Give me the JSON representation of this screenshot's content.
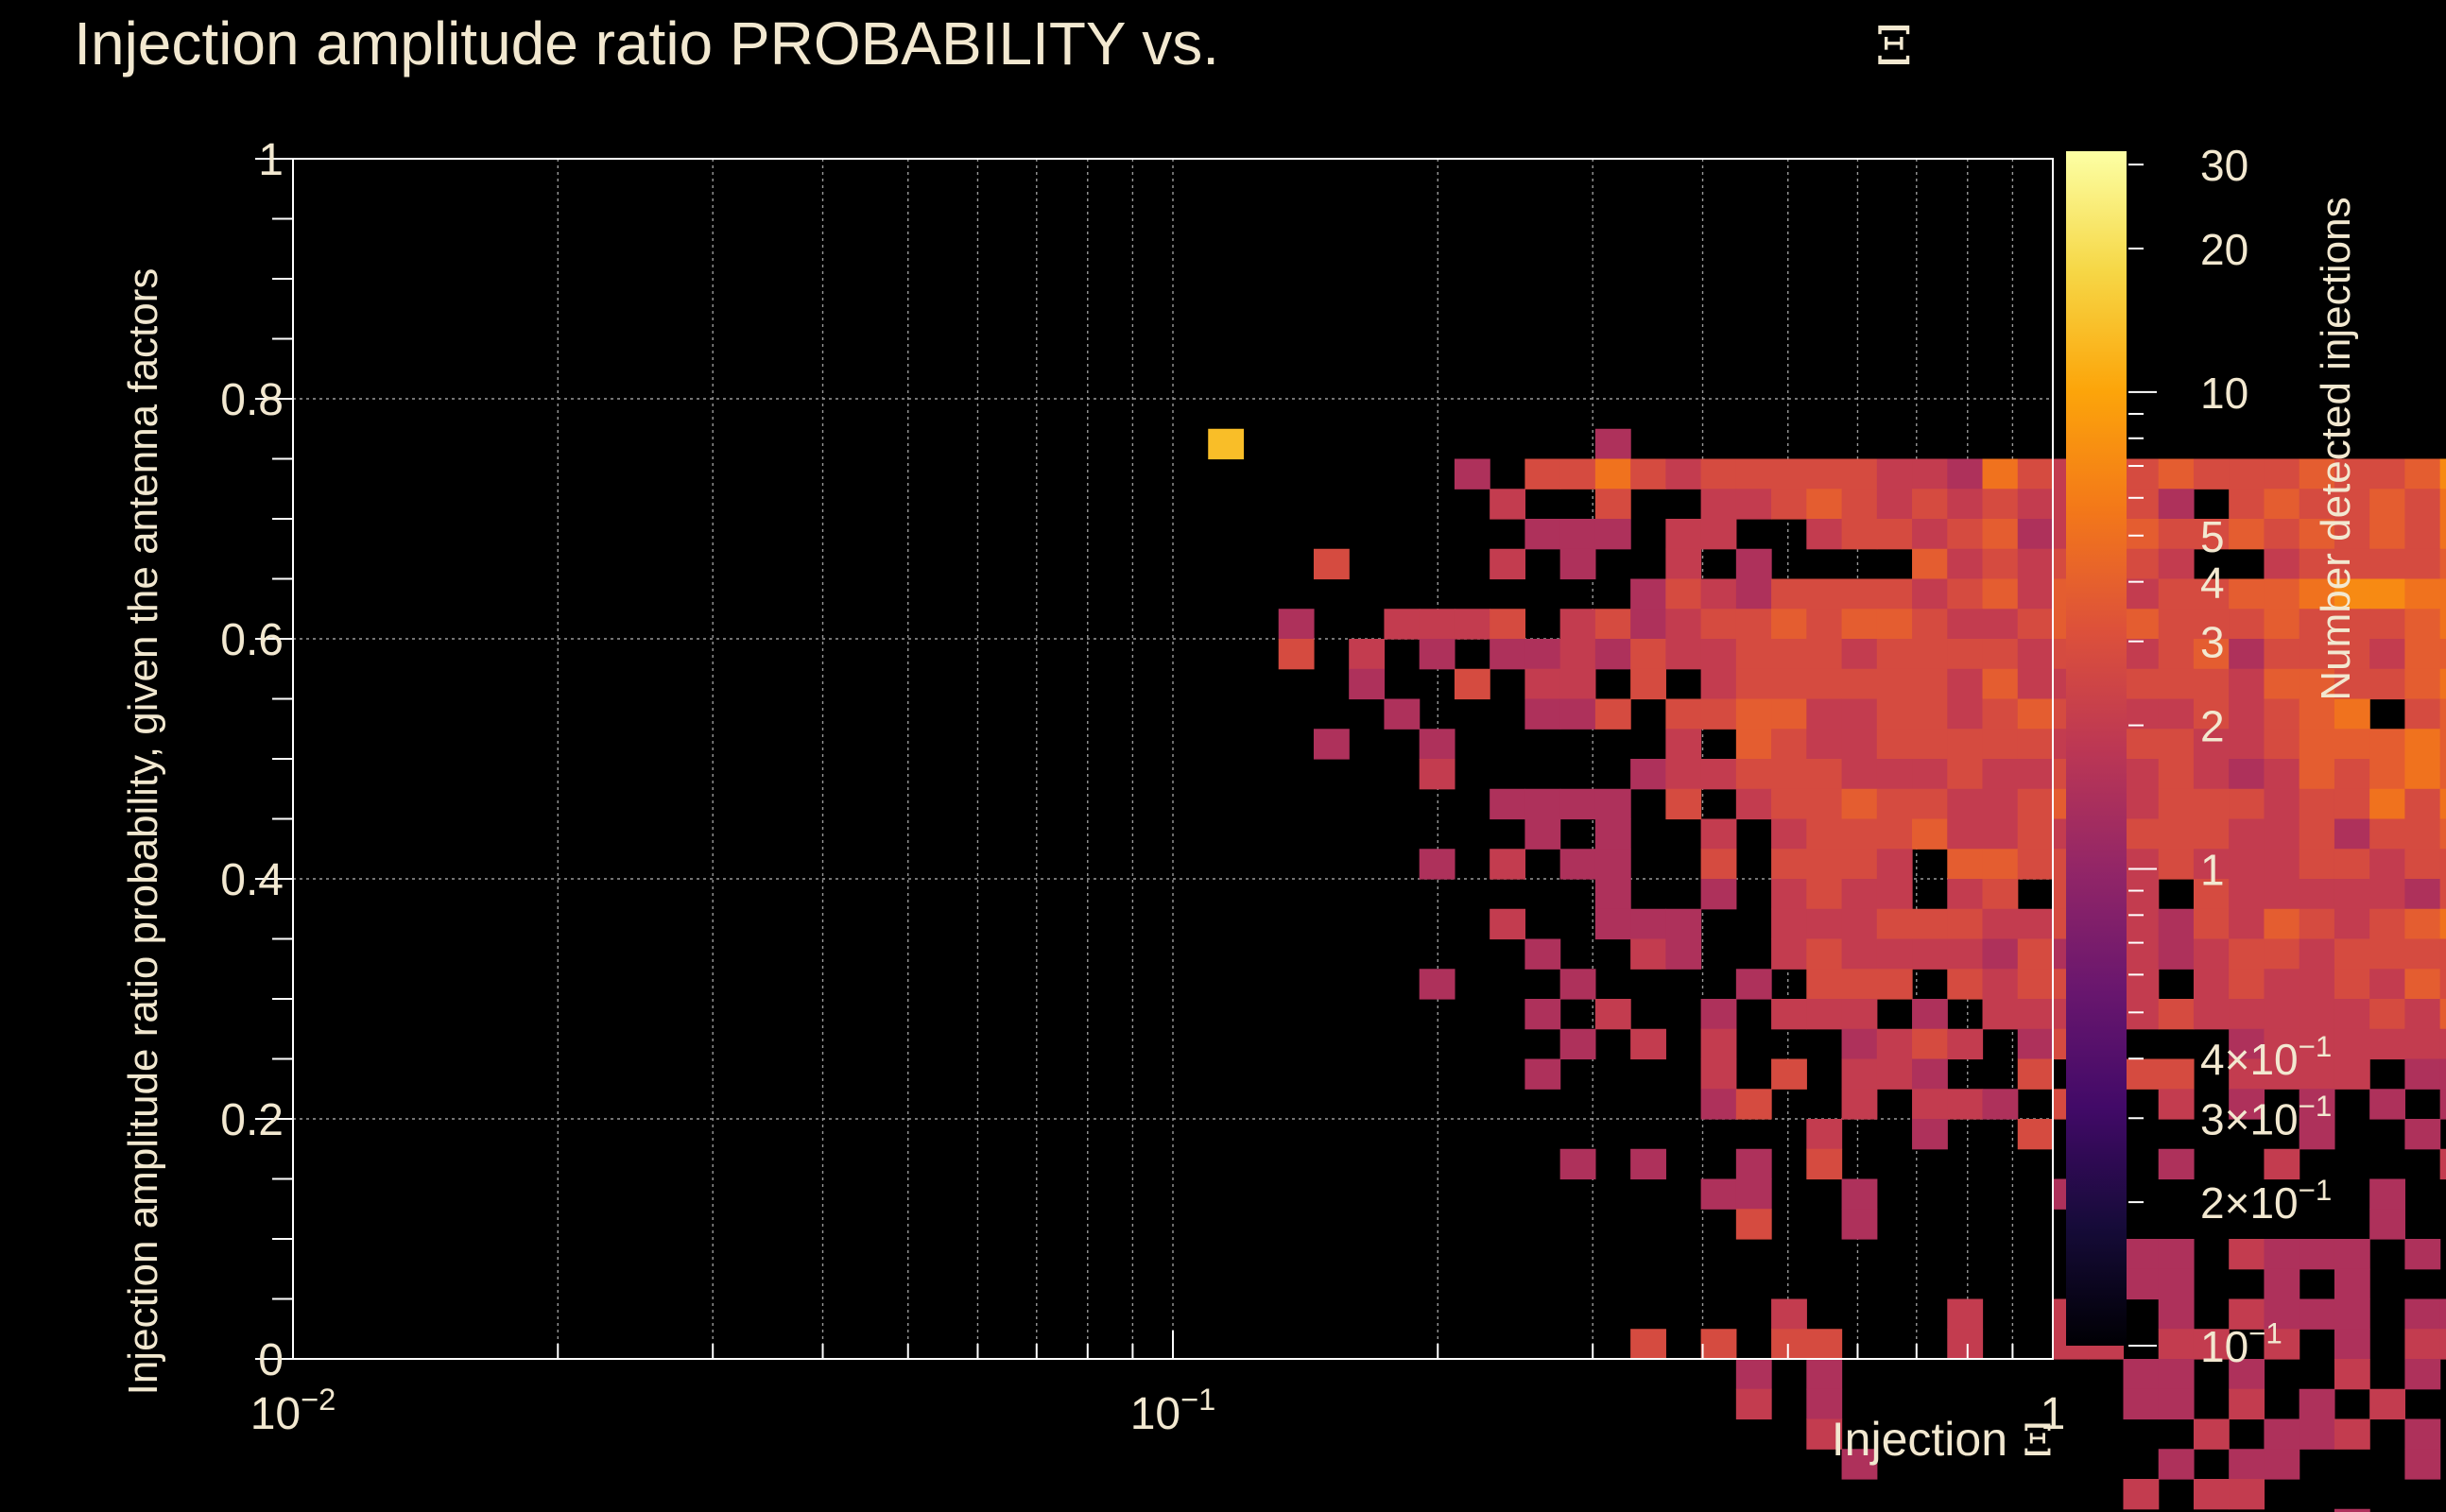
{
  "chart_data": {
    "type": "heatmap",
    "title": "Injection amplitude ratio PROBABILITY vs.",
    "title_symbol": "Ξ",
    "xlabel": "Injection",
    "xlabel_symbol": "Ξ",
    "ylabel": "Injection amplitude ratio probability, given the antenna factors",
    "zlabel": "Number detected injections",
    "x_scale": "log",
    "y_scale": "linear",
    "z_scale": "log",
    "xlim": [
      0.01,
      1
    ],
    "ylim": [
      0,
      1
    ],
    "zlim": [
      0.1,
      32
    ],
    "grid": true,
    "colormap": "inferno",
    "x_ticks": [
      {
        "value": 0.01,
        "base": "10",
        "exp": "−2"
      },
      {
        "value": 0.1,
        "base": "10",
        "exp": "−1"
      },
      {
        "value": 1,
        "base": "1",
        "exp": ""
      }
    ],
    "y_ticks": [
      {
        "value": 0,
        "label": "0"
      },
      {
        "value": 0.2,
        "label": "0.2"
      },
      {
        "value": 0.4,
        "label": "0.4"
      },
      {
        "value": 0.6,
        "label": "0.6"
      },
      {
        "value": 0.8,
        "label": "0.8"
      },
      {
        "value": 1,
        "label": "1"
      }
    ],
    "z_ticks": [
      {
        "value": 30,
        "mant": "30",
        "exp": ""
      },
      {
        "value": 20,
        "mant": "20",
        "exp": ""
      },
      {
        "value": 10,
        "mant": "10",
        "exp": ""
      },
      {
        "value": 5,
        "mant": "5",
        "exp": ""
      },
      {
        "value": 4,
        "mant": "4",
        "exp": ""
      },
      {
        "value": 3,
        "mant": "3",
        "exp": ""
      },
      {
        "value": 2,
        "mant": "2",
        "exp": ""
      },
      {
        "value": 1,
        "mant": "1",
        "exp": ""
      },
      {
        "value": 0.4,
        "mant": "4×10",
        "exp": "−1"
      },
      {
        "value": 0.3,
        "mant": "3×10",
        "exp": "−1"
      },
      {
        "value": 0.2,
        "mant": "2×10",
        "exp": "−1"
      },
      {
        "value": 0.1,
        "mant": "10",
        "exp": "−1"
      }
    ],
    "bins": {
      "x_bins": 50,
      "y_bins": 40,
      "x_range": [
        0.01,
        1
      ],
      "y_range": [
        0,
        1
      ],
      "col_offset": 26,
      "row_offset": 9,
      "grid": [
        "8..........1.....................",
        ".......1.33532333332215321343334334678878889999AB",
        "........2..3..22343232322431.3433435456577879999.",
        ".........111.22..233234123433434343545567678A9999.",
        "...3....2.1..2.1....42323232..23333443456778799999",
        "............13213333234243233445665555667888889899",
        "..1..2223.231233434432234343334333455665567789999.",
        "..3.2.1.1121322333233332332341333244455667888886",
        "....1..3.22.3.2333333242233332443345555655666665",
        ".....1...113.33442233234342232345.3435545566754",
        "...1..1......2.43223333324332234445454445544553",
        "......2.....12233322232233232124345444444453433",
        "........1111.3.2334332234223332335354544344344",
        ".........1.1..2.233342232.333223133435444345433",
        "......1.2.11..3.3332.44332232223323333344343431",
        "...........1..1.2322.23.322.32222213344344334.",
        "........2..111..2223332232213243234554433333",
        ".........1..21..232222131.2123323333323333322",
        "......1...1....1.333.3233.2.2322324334343333",
        ".........1.2..1.222.1.2223232222232434344334.",
        "..........1.2.2...1232.13....12222223333343332",
        ".........1....2.3.221..3.333.2222.11.33222232",
        "..............13..2.221.3..2.1.1.1.1.2..32",
        ".................2..1..3.1.....1..1.2.12",
        "..........1.1..1.3.......2.1..2....2",
        "..............11..1.....1........1",
        "...............3..1..............1",
        ".........................111.2111.1",
        ".........................111..1.1",
        "................2....2..22.1.2111.11",
        "............3.3.33...2..22.22.2.1.22.",
        "...............1.1........11.1..2.1.1",
        "...............2.1........11.2.1.2",
        ".................2..........2.112.1",
        "..................1........1.11...1",
        "..........................2.22.",
        "................................1",
        "...........................22...1"
      ]
    }
  }
}
